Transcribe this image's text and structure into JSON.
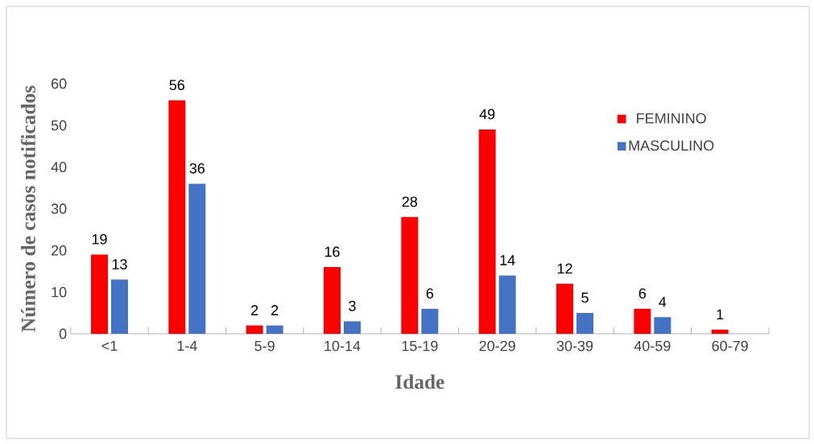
{
  "chart_data": {
    "type": "bar",
    "xlabel": "Idade",
    "ylabel": "Número de casos notificados",
    "categories": [
      "<1",
      "1-4",
      "5-9",
      "10-14",
      "15-19",
      "20-29",
      "30-39",
      "40-59",
      "60-79"
    ],
    "series": [
      {
        "name": "FEMININO",
        "color": "#ff0000",
        "values": [
          19,
          56,
          2,
          16,
          28,
          49,
          12,
          6,
          1
        ]
      },
      {
        "name": "MASCULINO",
        "color": "#4472c4",
        "values": [
          13,
          36,
          2,
          3,
          6,
          14,
          5,
          4,
          null
        ]
      }
    ],
    "ylim": [
      0,
      60
    ],
    "yticks": [
      0,
      10,
      20,
      30,
      40,
      50,
      60
    ],
    "grid": false,
    "legend": "top right",
    "data_labels": true
  }
}
